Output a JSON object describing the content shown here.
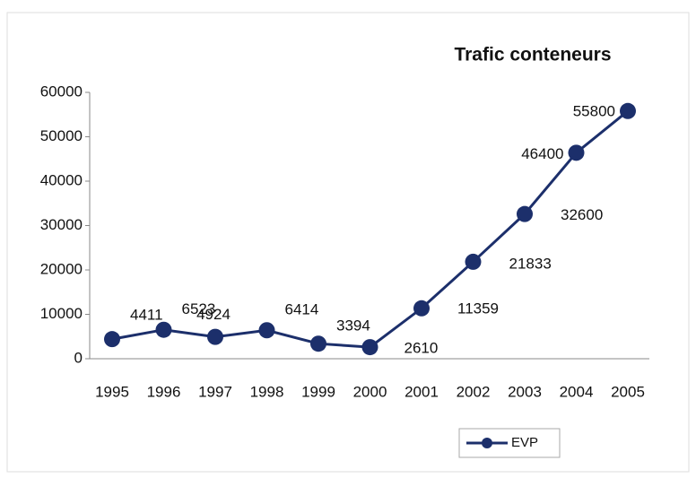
{
  "chart_data": {
    "type": "line",
    "title": "Trafic conteneurs",
    "categories": [
      "1995",
      "1996",
      "1997",
      "1998",
      "1999",
      "2000",
      "2001",
      "2002",
      "2003",
      "2004",
      "2005"
    ],
    "series": [
      {
        "name": "EVP",
        "color": "#1c2f6b",
        "values": [
          4411,
          6523,
          4924,
          6414,
          3394,
          2610,
          11359,
          21833,
          32600,
          46400,
          55800
        ]
      }
    ],
    "ylim": [
      0,
      60000
    ],
    "yticks": [
      0,
      10000,
      20000,
      30000,
      40000,
      50000,
      60000
    ],
    "legend": "bottom-right"
  }
}
